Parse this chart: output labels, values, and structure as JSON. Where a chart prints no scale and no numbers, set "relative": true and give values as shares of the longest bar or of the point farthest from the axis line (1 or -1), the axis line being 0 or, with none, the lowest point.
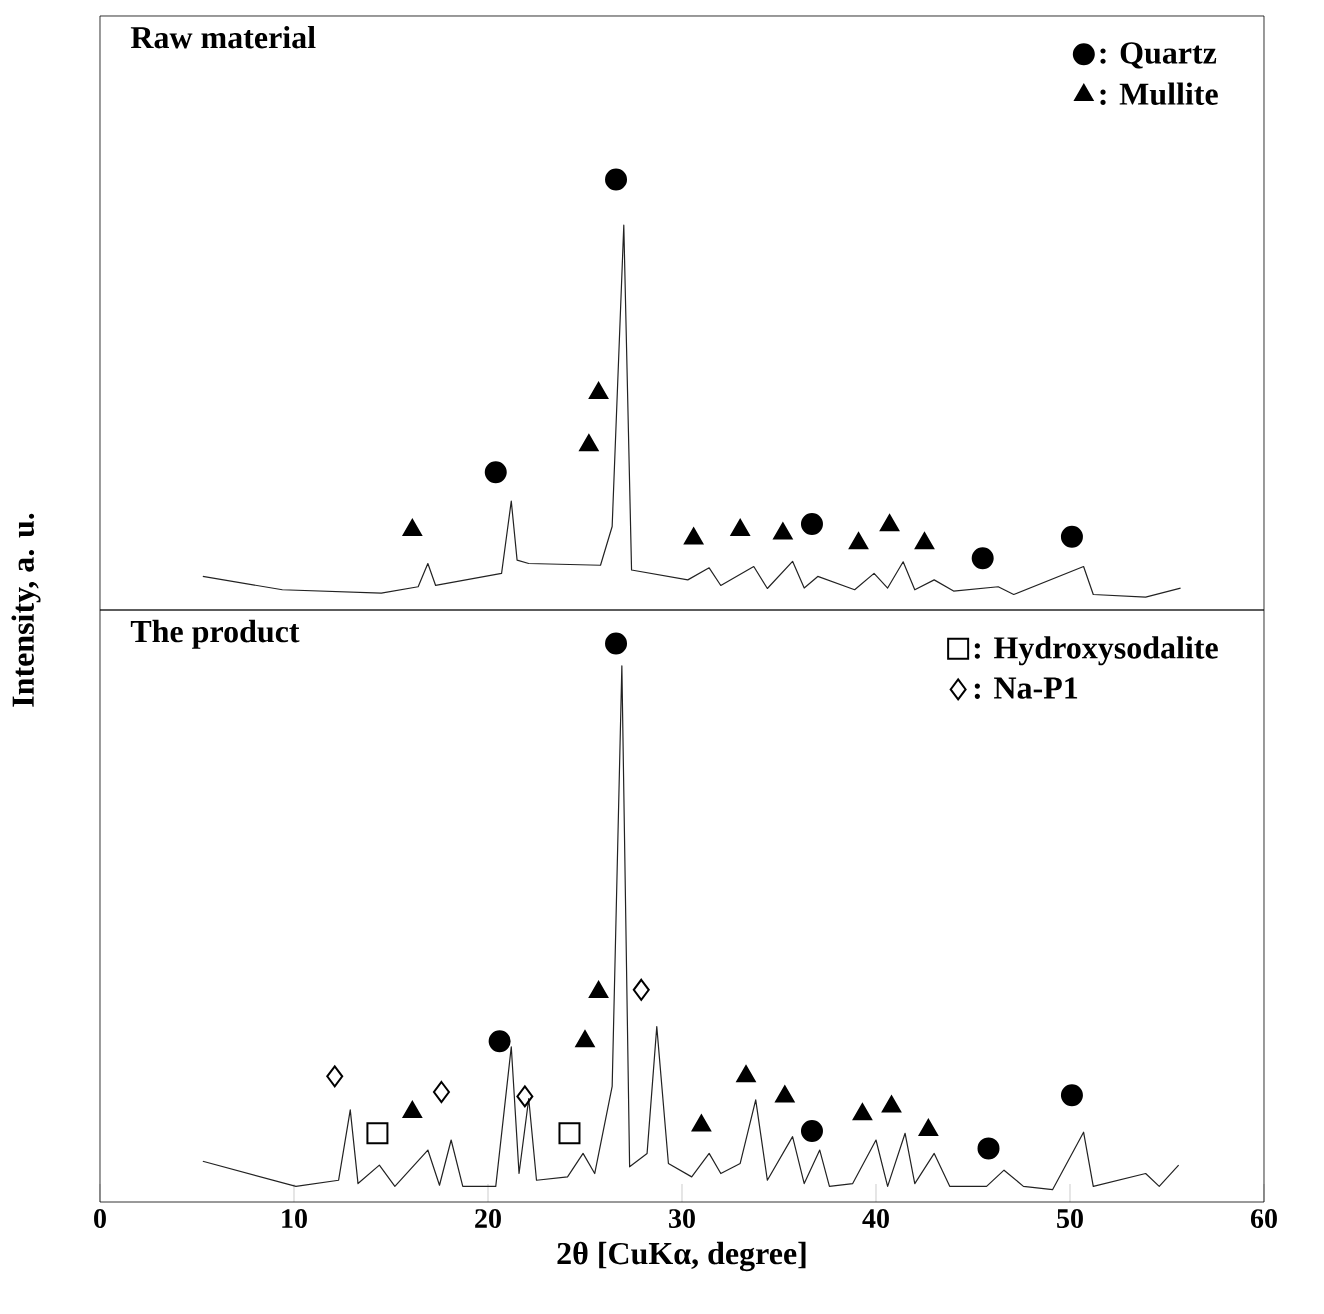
{
  "chart_data": [
    {
      "type": "line",
      "title": "Raw material",
      "ylabel": "Intensity, a. u.",
      "relative": true,
      "xlim": [
        0,
        60
      ],
      "tick_labels": false,
      "legend": "top right",
      "series": [
        {
          "color": "#222222",
          "marker": "none",
          "x": [
            5.3,
            9.4,
            14.5,
            16.4,
            16.9,
            17.3,
            20.7,
            21.2,
            21.5,
            22.1,
            25.8,
            26.4,
            27.0,
            27.4,
            30.3,
            31.4,
            32.0,
            33.7,
            34.4,
            35.7,
            36.3,
            37.0,
            38.9,
            39.9,
            40.6,
            41.4,
            42.0,
            43.0,
            44.0,
            46.3,
            47.1,
            50.7,
            51.2,
            53.9,
            55.7
          ],
          "values": [
            0.078,
            0.047,
            0.039,
            0.054,
            0.108,
            0.057,
            0.085,
            0.253,
            0.116,
            0.108,
            0.104,
            0.194,
            0.894,
            0.093,
            0.07,
            0.098,
            0.057,
            0.101,
            0.05,
            0.113,
            0.051,
            0.078,
            0.047,
            0.085,
            0.051,
            0.112,
            0.047,
            0.07,
            0.044,
            0.054,
            0.036,
            0.101,
            0.036,
            0.03,
            0.051
          ]
        },
        {
          "type": "scatter",
          "name": ": Quartz",
          "color": "#000000",
          "marker": "circle",
          "x": [
            20.4,
            26.6,
            36.7,
            45.5,
            50.1
          ],
          "values": [
            0.32,
            1.0,
            0.2,
            0.12,
            0.17
          ]
        },
        {
          "type": "scatter",
          "name": ": Mullite",
          "color": "#000000",
          "marker": "triangle",
          "x": [
            16.1,
            25.2,
            25.7,
            30.6,
            33.0,
            35.2,
            39.1,
            40.7,
            42.5
          ],
          "values": [
            0.186,
            0.383,
            0.504,
            0.166,
            0.186,
            0.178,
            0.155,
            0.197,
            0.155
          ]
        }
      ]
    },
    {
      "type": "line",
      "title": "The product",
      "xlabel": "2θ [CuKα, degree]",
      "relative": true,
      "xlim": [
        0,
        60
      ],
      "xticks": [
        0,
        10,
        20,
        30,
        40,
        50,
        60
      ],
      "tick_labels": "x",
      "legend": "top right",
      "series": [
        {
          "color": "#222222",
          "marker": "none",
          "x": [
            5.3,
            10.1,
            12.3,
            12.9,
            13.3,
            14.4,
            15.2,
            16.9,
            17.5,
            18.1,
            18.7,
            20.4,
            21.2,
            21.6,
            22.1,
            22.5,
            24.1,
            24.9,
            25.5,
            26.4,
            26.9,
            27.3,
            28.2,
            28.7,
            29.3,
            30.5,
            31.4,
            32.0,
            33.0,
            33.8,
            34.4,
            35.7,
            36.3,
            37.1,
            37.6,
            38.8,
            40.0,
            40.6,
            41.5,
            42.0,
            43.0,
            43.8,
            45.7,
            46.6,
            47.6,
            49.1,
            50.7,
            51.2,
            53.9,
            54.6,
            55.6
          ],
          "values": [
            0.073,
            0.028,
            0.039,
            0.165,
            0.033,
            0.066,
            0.028,
            0.093,
            0.03,
            0.111,
            0.028,
            0.028,
            0.278,
            0.051,
            0.185,
            0.039,
            0.045,
            0.087,
            0.051,
            0.207,
            0.96,
            0.063,
            0.087,
            0.314,
            0.069,
            0.045,
            0.087,
            0.051,
            0.069,
            0.183,
            0.039,
            0.117,
            0.033,
            0.093,
            0.028,
            0.033,
            0.111,
            0.028,
            0.123,
            0.033,
            0.087,
            0.028,
            0.028,
            0.057,
            0.028,
            0.022,
            0.125,
            0.028,
            0.051,
            0.028,
            0.066
          ]
        },
        {
          "type": "scatter",
          "color": "#000000",
          "marker": "circle",
          "x": [
            20.6,
            26.6,
            36.7,
            45.8,
            50.1
          ],
          "values": [
            0.288,
            1.0,
            0.127,
            0.096,
            0.191
          ]
        },
        {
          "type": "scatter",
          "color": "#000000",
          "marker": "triangle",
          "x": [
            16.1,
            25.0,
            25.7,
            31.0,
            33.3,
            35.3,
            39.3,
            40.8,
            42.7
          ],
          "values": [
            0.161,
            0.288,
            0.376,
            0.137,
            0.225,
            0.189,
            0.157,
            0.171,
            0.129
          ]
        },
        {
          "type": "scatter",
          "name": ": Hydroxysodalite",
          "color": "#000000",
          "marker": "square",
          "x": [
            14.3,
            24.2
          ],
          "values": [
            0.123,
            0.123
          ]
        },
        {
          "type": "scatter",
          "name": ": Na-P1",
          "color": "#000000",
          "marker": "diamond",
          "x": [
            12.1,
            17.6,
            21.9,
            27.9
          ],
          "values": [
            0.225,
            0.197,
            0.189,
            0.38
          ]
        }
      ]
    }
  ]
}
